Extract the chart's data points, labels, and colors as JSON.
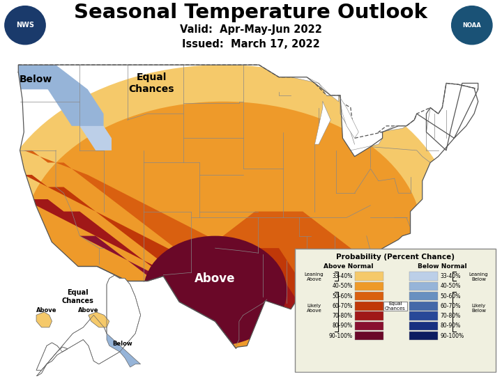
{
  "title": "Seasonal Temperature Outlook",
  "valid_line": "Valid:  Apr-May-Jun 2022",
  "issued_line": "Issued:  March 17, 2022",
  "title_fontsize": 22,
  "subtitle_fontsize": 11,
  "background_color": "#ffffff",
  "above_normal_colors": {
    "33-40%": "#F5C96A",
    "40-50%": "#EE9A2A",
    "50-60%": "#D96010",
    "60-70%": "#C03808",
    "70-80%": "#A01818",
    "80-90%": "#881030",
    "90-100%": "#6A0828"
  },
  "below_normal_colors": {
    "33-40%": "#BCCFE8",
    "40-50%": "#96B4D8",
    "50-60%": "#6890C0",
    "60-70%": "#4468A8",
    "70-80%": "#284898",
    "80-90%": "#183080",
    "90-100%": "#0C1C60"
  },
  "equal_chances_color": "#ffffff",
  "legend_title": "Probability (Percent Chance)",
  "above_normal_label": "Above Normal",
  "below_normal_label": "Below Normal",
  "legend_box_color": "#f0f0e0",
  "legend_border_color": "#888888",
  "map_bg": "#ffffff",
  "state_line_color": "#888888",
  "border_color": "#555555"
}
